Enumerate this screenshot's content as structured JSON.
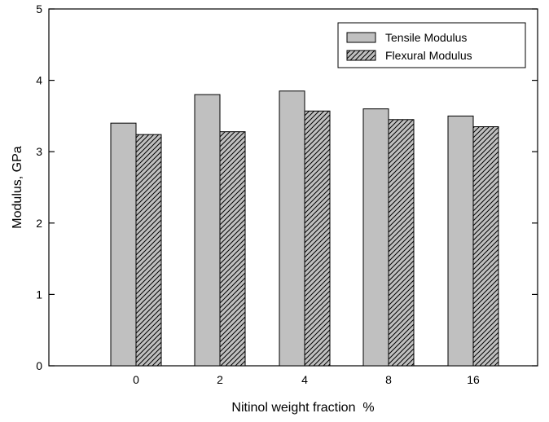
{
  "chart_data": {
    "type": "bar",
    "categories": [
      "0",
      "2",
      "4",
      "8",
      "16"
    ],
    "series": [
      {
        "name": "Tensile Modulus",
        "values": [
          3.4,
          3.8,
          3.85,
          3.6,
          3.5
        ],
        "fill": "#c0c0c0",
        "pattern": "solid"
      },
      {
        "name": "Flexural Modulus",
        "values": [
          3.24,
          3.28,
          3.57,
          3.45,
          3.35
        ],
        "fill": "#c0c0c0",
        "pattern": "diagonal-hatch"
      }
    ],
    "xlabel": "Nitinol weight fraction  %",
    "ylabel": "Modulus, GPa",
    "ylim": [
      0,
      5
    ],
    "yticks": [
      "0",
      "1",
      "2",
      "3",
      "4",
      "5"
    ],
    "grid": false,
    "legend_position": "top-right"
  }
}
